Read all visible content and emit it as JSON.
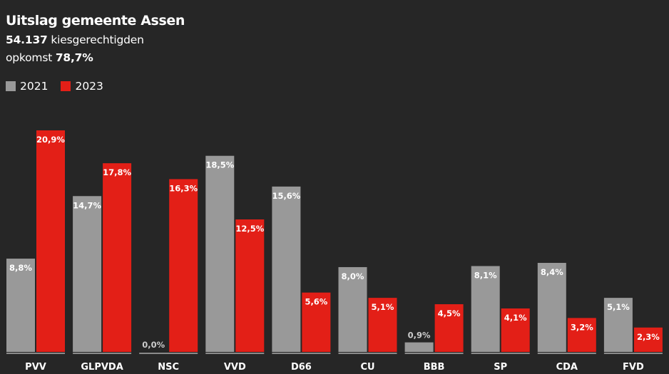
{
  "header": {
    "title": "Uitslag gemeente Assen",
    "voters_value": "54.137",
    "voters_label": " kiesgerechtigden",
    "turnout_label": "opkomst ",
    "turnout_value": "78,7%"
  },
  "colors": {
    "background": "#262626",
    "y2021": "#999999",
    "y2023": "#e31f17",
    "baseline": "#8a8a8a"
  },
  "chart_data": {
    "type": "bar",
    "categories": [
      "PVV",
      "GLPVDA",
      "NSC",
      "VVD",
      "D66",
      "CU",
      "BBB",
      "SP",
      "CDA",
      "FVD"
    ],
    "series": [
      {
        "name": "2021",
        "values": [
          8.8,
          14.7,
          0.0,
          18.5,
          15.6,
          8.0,
          0.9,
          8.1,
          8.4,
          5.1
        ],
        "labels": [
          "8,8%",
          "14,7%",
          "0,0%",
          "18,5%",
          "15,6%",
          "8,0%",
          "0,9%",
          "8,1%",
          "8,4%",
          "5,1%"
        ]
      },
      {
        "name": "2023",
        "values": [
          20.9,
          17.8,
          16.3,
          12.5,
          5.6,
          5.1,
          4.5,
          4.1,
          3.2,
          2.3
        ],
        "labels": [
          "20,9%",
          "17,8%",
          "16,3%",
          "12,5%",
          "5,6%",
          "5,1%",
          "4,5%",
          "4,1%",
          "3,2%",
          "2,3%"
        ]
      }
    ],
    "ylim": [
      0,
      21
    ],
    "grid": false,
    "legend": "top-left"
  }
}
